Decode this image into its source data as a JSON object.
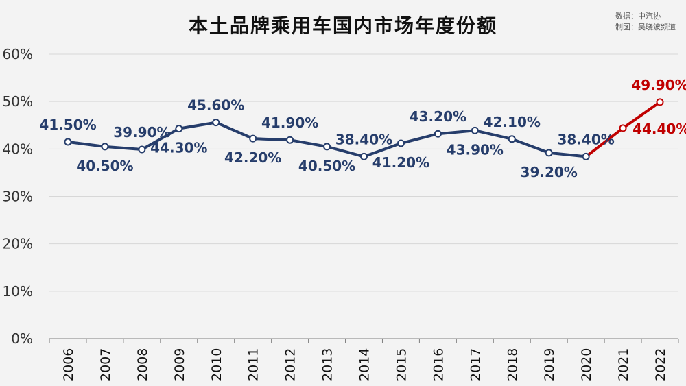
{
  "chart_data": {
    "type": "line",
    "title": "本土品牌乘用车国内市场年度份额",
    "source_lines": [
      "数据：中汽协",
      "制图：吴晓波频道"
    ],
    "categories": [
      "2006",
      "2007",
      "2008",
      "2009",
      "2010",
      "2011",
      "2012",
      "2013",
      "2014",
      "2015",
      "2016",
      "2017",
      "2018",
      "2019",
      "2020",
      "2021",
      "2022"
    ],
    "values": [
      41.5,
      40.5,
      39.9,
      44.3,
      45.6,
      42.2,
      41.9,
      40.5,
      38.4,
      41.2,
      43.2,
      43.9,
      42.1,
      39.2,
      38.4,
      44.4,
      49.9
    ],
    "data_labels": [
      "41.50%",
      "40.50%",
      "39.90%",
      "44.30%",
      "45.60%",
      "42.20%",
      "41.90%",
      "40.50%",
      "38.40%",
      "41.20%",
      "43.20%",
      "43.90%",
      "42.10%",
      "39.20%",
      "38.40%",
      "44.40%",
      "49.90%"
    ],
    "label_positions": [
      "above",
      "below",
      "above",
      "below",
      "above",
      "below",
      "above",
      "below",
      "above",
      "below",
      "above",
      "below",
      "above",
      "below",
      "above",
      "right",
      "above"
    ],
    "highlight_from_index": 14,
    "y_ticks": [
      0,
      10,
      20,
      30,
      40,
      50,
      60
    ],
    "y_tick_labels": [
      "0%",
      "10%",
      "20%",
      "30%",
      "40%",
      "50%",
      "60%"
    ],
    "ylim": [
      0,
      60
    ],
    "grid": true,
    "xlabel": "",
    "ylabel": "",
    "colors": {
      "main": "#263d6b",
      "highlight": "#c00000",
      "grid": "#d7d7d7",
      "marker_fill": "#ffffff"
    }
  }
}
